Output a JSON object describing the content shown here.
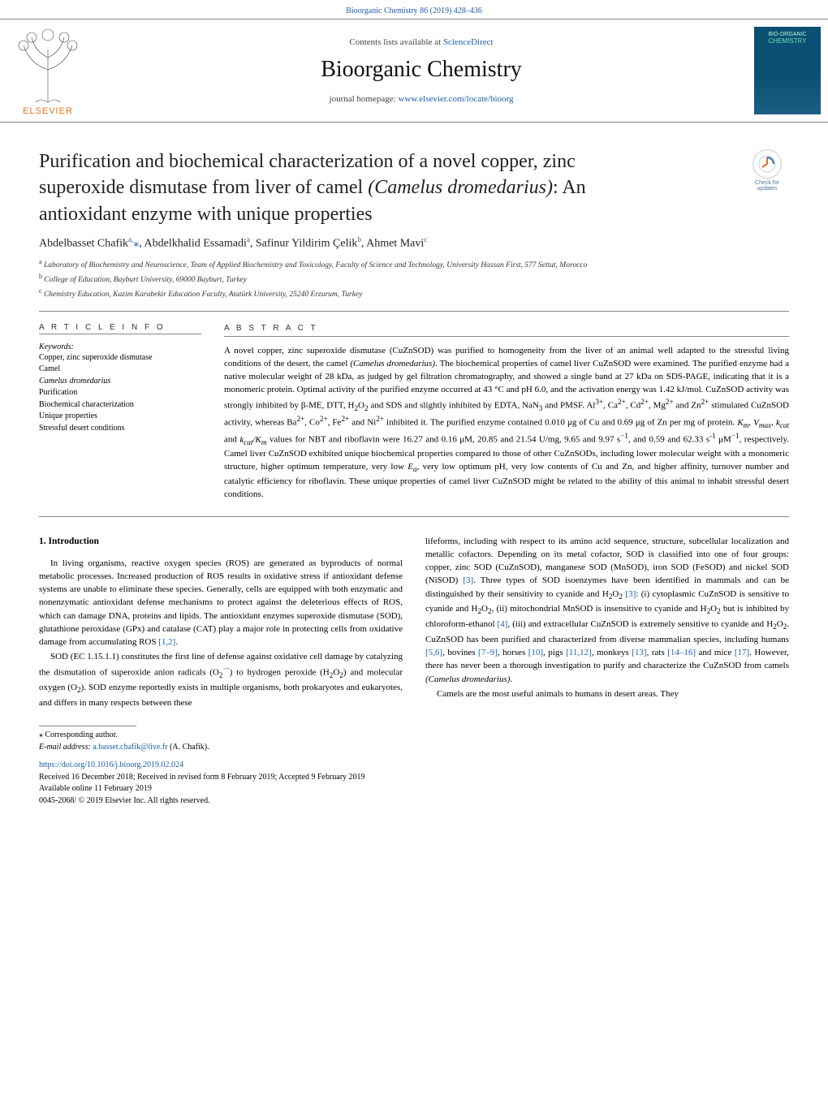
{
  "top_link": {
    "journal_ref": "Bioorganic Chemistry 86 (2019) 428–436"
  },
  "header": {
    "contents_prefix": "Contents lists available at ",
    "contents_link": "ScienceDirect",
    "journal_title": "Bioorganic Chemistry",
    "homepage_prefix": "journal homepage: ",
    "homepage_link": "www.elsevier.com/locate/bioorg",
    "publisher_name": "ELSEVIER",
    "cover_line1": "BIO-ORGANIC",
    "cover_line2": "CHEMISTRY"
  },
  "article": {
    "title_line1": "Purification and biochemical characterization of a novel copper, zinc",
    "title_line2": "superoxide dismutase from liver of camel ",
    "title_italic": "(Camelus dromedarius)",
    "title_line3": ": An",
    "title_line4": "antioxidant enzyme with unique properties",
    "updates_label1": "Check for",
    "updates_label2": "updates",
    "authors_html": "Abdelbasset Chafik<sup>a,</sup><span class=\"corr\">⁎</span>, Abdelkhalid Essamadi<sup>a</sup>, Safinur Yildirim Çelik<sup>b</sup>, Ahmet Mavi<sup>c</sup>",
    "affiliations": [
      "a Laboratory of Biochemistry and Neuroscience, Team of Applied Biochemistry and Toxicology, Faculty of Science and Technology, University Hassan First, 577 Settat, Morocco",
      "b College of Education, Bayburt University, 69000 Bayburt, Turkey",
      "c Chemistry Education, Kazim Karabekir Education Faculty, Atatürk University, 25240 Erzurum, Turkey"
    ]
  },
  "info": {
    "heading": "A R T I C L E  I N F O",
    "keywords_label": "Keywords:",
    "keywords": [
      "Copper, zinc superoxide dismutase",
      "Camel",
      "Camelus dromedarius",
      "Purification",
      "Biochemical characterization",
      "Unique properties",
      "Stressful desert conditions"
    ]
  },
  "abstract": {
    "heading": "A B S T R A C T",
    "text_html": "A novel copper, zinc superoxide dismutase (CuZnSOD) was purified to homogeneity from the liver of an animal well adapted to the stressful living conditions of the desert, the camel <i>(Camelus dromedarius)</i>. The biochemical properties of camel liver CuZnSOD were examined. The purified enzyme had a native molecular weight of 28 kDa, as judged by gel filtration chromatography, and showed a single band at 27 kDa on SDS-PAGE, indicating that it is a monomeric protein. Optimal activity of the purified enzyme occurred at 43 °C and pH 6.0, and the activation energy was 1.42 kJ/mol. CuZnSOD activity was strongly inhibited by β-ME, DTT, H<sub>2</sub>O<sub>2</sub> and SDS and slightly inhibited by EDTA, NaN<sub>3</sub> and PMSF. Al<sup>3+</sup>, Ca<sup>2+</sup>, Cd<sup>2+</sup>, Mg<sup>2+</sup> and Zn<sup>2+</sup> stimulated CuZnSOD activity, whereas Ba<sup>2+</sup>, Co<sup>2+</sup>, Fe<sup>2+</sup> and Ni<sup>2+</sup> inhibited it. The purified enzyme contained 0.010 μg of Cu and 0.69 μg of Zn per mg of protein. <i>K<sub>m</sub></i>, <i>V<sub>max</sub></i>, <i>k<sub>cat</sub></i> and <i>k<sub>cat</sub>/K<sub>m</sub></i> values for NBT and riboflavin were 16.27 and 0.16 μM, 20.85 and 21.54 U/mg, 9.65 and 9.97 s<sup>−1</sup>, and 0.59 and 62.33 s<sup>-1</sup> μM<sup>−1</sup>, respectively. Camel liver CuZnSOD exhibited unique biochemical properties compared to those of other CuZnSODs, including lower molecular weight with a monomeric structure, higher optimum temperature, very low <i>E<sub>a</sub></i>, very low optimum pH, very low contents of Cu and Zn, and higher affinity, turnover number and catalytic efficiency for riboflavin. These unique properties of camel liver CuZnSOD might be related to the ability of this animal to inhabit stressful desert conditions."
  },
  "body": {
    "intro_heading": "1. Introduction",
    "col1_html": "<p>In living organisms, reactive oxygen species (ROS) are generated as byproducts of normal metabolic processes. Increased production of ROS results in oxidative stress if antioxidant defense systems are unable to eliminate these species. Generally, cells are equipped with both enzymatic and nonenzymatic antioxidant defense mechanisms to protect against the deleterious effects of ROS, which can damage DNA, proteins and lipids. The antioxidant enzymes superoxide dismutase (SOD), glutathione peroxidase (GPx) and catalase (CAT) play a major role in protecting cells from oxidative damage from accumulating ROS <span class=\"ref\">[1,2]</span>.</p><p>SOD (EC 1.15.1.1) constitutes the first line of defense against oxidative cell damage by catalyzing the dismutation of superoxide anion radicals (O<sub>2</sub><sup>·−</sup>) to hydrogen peroxide (H<sub>2</sub>O<sub>2</sub>) and molecular oxygen (O<sub>2</sub>). SOD enzyme reportedly exists in multiple organisms, both prokaryotes and eukaryotes, and differs in many respects between these</p>",
    "col2_html": "<p style=\"text-indent:0\">lifeforms, including with respect to its amino acid sequence, structure, subcellular localization and metallic cofactors. Depending on its metal cofactor, SOD is classified into one of four groups: copper, zinc SOD (CuZnSOD), manganese SOD (MnSOD), iron SOD (FeSOD) and nickel SOD (NiSOD) <span class=\"ref\">[3]</span>. Three types of SOD isoenzymes have been identified in mammals and can be distinguished by their sensitivity to cyanide and H<sub>2</sub>O<sub>2</sub> <span class=\"ref\">[3]</span>: (i) cytoplasmic CuZnSOD is sensitive to cyanide and H<sub>2</sub>O<sub>2</sub>, (ii) mitochondrial MnSOD is insensitive to cyanide and H<sub>2</sub>O<sub>2</sub> but is inhibited by chloroform-ethanol <span class=\"ref\">[4]</span>, (iii) and extracellular CuZnSOD is extremely sensitive to cyanide and H<sub>2</sub>O<sub>2</sub>. CuZnSOD has been purified and characterized from diverse mammalian species, including humans <span class=\"ref\">[5,6]</span>, bovines <span class=\"ref\">[7–9]</span>, horses <span class=\"ref\">[10]</span>, pigs <span class=\"ref\">[11,12]</span>, monkeys <span class=\"ref\">[13]</span>, rats <span class=\"ref\">[14–16]</span> and mice <span class=\"ref\">[17]</span>. However, there has never been a thorough investigation to purify and characterize the CuZnSOD from camels <i>(Camelus dromedarius)</i>.</p><p>Camels are the most useful animals to humans in desert areas. They</p>"
  },
  "footer": {
    "corr_label": "⁎ Corresponding author.",
    "email_label": "E-mail address: ",
    "email": "a.basset.chafik@live.fr",
    "email_suffix": " (A. Chafik).",
    "doi": "https://doi.org/10.1016/j.bioorg.2019.02.024",
    "received": "Received 16 December 2018; Received in revised form 8 February 2019; Accepted 9 February 2019",
    "available": "Available online 11 February 2019",
    "copyright": "0045-2068/ © 2019 Elsevier Inc. All rights reserved."
  },
  "colors": {
    "link": "#1b5eab",
    "elsevier_orange": "#e8701a",
    "text": "#000000",
    "rule": "#888888"
  }
}
